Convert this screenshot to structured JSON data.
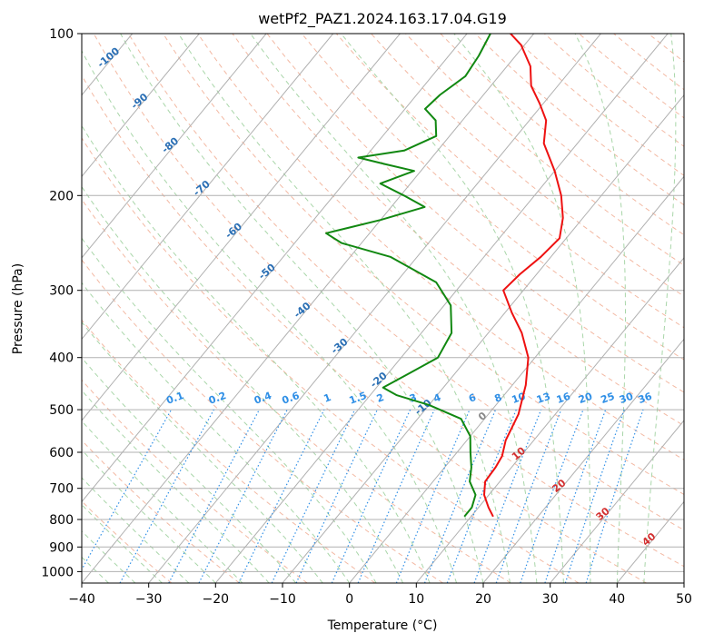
{
  "chart_data": {
    "type": "line",
    "subtype": "skew-t log-p",
    "title": "wetPf2_PAZ1.2024.163.17.04.G19",
    "xlabel": "Temperature (°C)",
    "ylabel": "Pressure (hPa)",
    "xlim": [
      -40,
      50
    ],
    "ylim": [
      1050,
      100
    ],
    "y_scale": "log",
    "grid": true,
    "x_ticks": [
      -40,
      -30,
      -20,
      -10,
      0,
      10,
      20,
      30,
      40,
      50
    ],
    "y_ticks": [
      100,
      200,
      300,
      400,
      500,
      600,
      700,
      800,
      900,
      1000
    ],
    "isotherm_labels": [
      "-100",
      "-90",
      "-80",
      "-70",
      "-60",
      "-50",
      "-40",
      "-30",
      "-20",
      "-10"
    ],
    "mixing_ratio_labels": [
      "0.1",
      "0.2",
      "0.4",
      "0.6",
      "1",
      "1.5",
      "2",
      "3",
      "4",
      "6",
      "8",
      "10",
      "13",
      "16",
      "20",
      "25",
      "30",
      "36"
    ],
    "mixing_ratio_values": [
      0.1,
      0.2,
      0.4,
      0.6,
      1,
      1.5,
      2,
      3,
      4,
      6,
      8,
      10,
      13,
      16,
      20,
      25,
      30,
      36
    ],
    "isotherm_0_label": "0",
    "red_isotherm_labels": [
      "10",
      "20",
      "30",
      "40"
    ],
    "colors": {
      "temperature": "#ee1111",
      "dewpoint": "#118811",
      "isotherm_label": "#2a6fb5",
      "mixing_ratio": "#2f8fe6",
      "dry_adiabat": "#f3b9a3",
      "moist_adiabat": "#a9d6a9",
      "warm_label": "#d33030",
      "grid": "#b0b0b0"
    },
    "series": [
      {
        "name": "temperature",
        "points": [
          {
            "p": 790,
            "t": 13.3
          },
          {
            "p": 760,
            "t": 11.5
          },
          {
            "p": 720,
            "t": 9.3
          },
          {
            "p": 680,
            "t": 7.8
          },
          {
            "p": 640,
            "t": 7.6
          },
          {
            "p": 610,
            "t": 7.2
          },
          {
            "p": 570,
            "t": 5.8
          },
          {
            "p": 510,
            "t": 4.5
          },
          {
            "p": 450,
            "t": 2.0
          },
          {
            "p": 400,
            "t": -1.0
          },
          {
            "p": 360,
            "t": -5.0
          },
          {
            "p": 330,
            "t": -9.0
          },
          {
            "p": 300,
            "t": -13.0
          },
          {
            "p": 280,
            "t": -12.5
          },
          {
            "p": 260,
            "t": -11.5
          },
          {
            "p": 240,
            "t": -11.0
          },
          {
            "p": 220,
            "t": -13.0
          },
          {
            "p": 200,
            "t": -16.0
          },
          {
            "p": 180,
            "t": -20.0
          },
          {
            "p": 160,
            "t": -25.0
          },
          {
            "p": 145,
            "t": -27.5
          },
          {
            "p": 135,
            "t": -30.5
          },
          {
            "p": 125,
            "t": -34.0
          },
          {
            "p": 115,
            "t": -36.5
          },
          {
            "p": 105,
            "t": -40.5
          },
          {
            "p": 100,
            "t": -43.5
          }
        ]
      },
      {
        "name": "dewpoint",
        "points": [
          {
            "p": 790,
            "t": 9.0
          },
          {
            "p": 760,
            "t": 9.0
          },
          {
            "p": 720,
            "t": 8.0
          },
          {
            "p": 680,
            "t": 5.5
          },
          {
            "p": 640,
            "t": 4.0
          },
          {
            "p": 600,
            "t": 2.0
          },
          {
            "p": 560,
            "t": 0.0
          },
          {
            "p": 520,
            "t": -3.5
          },
          {
            "p": 490,
            "t": -10.0
          },
          {
            "p": 470,
            "t": -16.0
          },
          {
            "p": 455,
            "t": -19.0
          },
          {
            "p": 430,
            "t": -17.0
          },
          {
            "p": 400,
            "t": -14.5
          },
          {
            "p": 360,
            "t": -15.5
          },
          {
            "p": 320,
            "t": -19.0
          },
          {
            "p": 290,
            "t": -24.0
          },
          {
            "p": 260,
            "t": -34.0
          },
          {
            "p": 245,
            "t": -43.0
          },
          {
            "p": 235,
            "t": -46.5
          },
          {
            "p": 222,
            "t": -40.0
          },
          {
            "p": 210,
            "t": -35.0
          },
          {
            "p": 200,
            "t": -39.5
          },
          {
            "p": 190,
            "t": -44.5
          },
          {
            "p": 180,
            "t": -41.0
          },
          {
            "p": 175,
            "t": -46.0
          },
          {
            "p": 170,
            "t": -51.0
          },
          {
            "p": 165,
            "t": -45.0
          },
          {
            "p": 155,
            "t": -42.0
          },
          {
            "p": 145,
            "t": -44.0
          },
          {
            "p": 138,
            "t": -47.0
          },
          {
            "p": 130,
            "t": -46.5
          },
          {
            "p": 120,
            "t": -45.0
          },
          {
            "p": 110,
            "t": -45.5
          },
          {
            "p": 100,
            "t": -46.5
          }
        ]
      }
    ]
  }
}
